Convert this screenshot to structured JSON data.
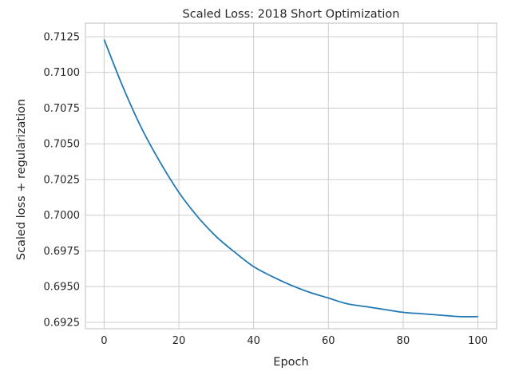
{
  "chart_data": {
    "type": "line",
    "title": "Scaled Loss: 2018 Short Optimization",
    "xlabel": "Epoch",
    "ylabel": "Scaled loss + regularization",
    "xlim": [
      -5,
      105
    ],
    "ylim": [
      0.69205,
      0.71345
    ],
    "xticks": [
      0,
      20,
      40,
      60,
      80,
      100
    ],
    "yticks": [
      0.6925,
      0.695,
      0.6975,
      0.7,
      0.7025,
      0.705,
      0.7075,
      0.71,
      0.7125
    ],
    "ytick_labels": [
      "0.6925",
      "0.6950",
      "0.6975",
      "0.7000",
      "0.7025",
      "0.7050",
      "0.7075",
      "0.7100",
      "0.7125"
    ],
    "grid": true,
    "line_color": "#1f77b4",
    "series": [
      {
        "x": [
          0,
          5,
          10,
          15,
          20,
          25,
          30,
          35,
          40,
          45,
          50,
          55,
          60,
          65,
          70,
          75,
          80,
          85,
          90,
          95,
          100
        ],
        "values": [
          0.7123,
          0.709,
          0.7061,
          0.7037,
          0.7016,
          0.6999,
          0.6985,
          0.6974,
          0.6964,
          0.6957,
          0.6951,
          0.6946,
          0.6942,
          0.6938,
          0.6936,
          0.6934,
          0.6932,
          0.6931,
          0.693,
          0.6929,
          0.6929
        ]
      }
    ]
  }
}
